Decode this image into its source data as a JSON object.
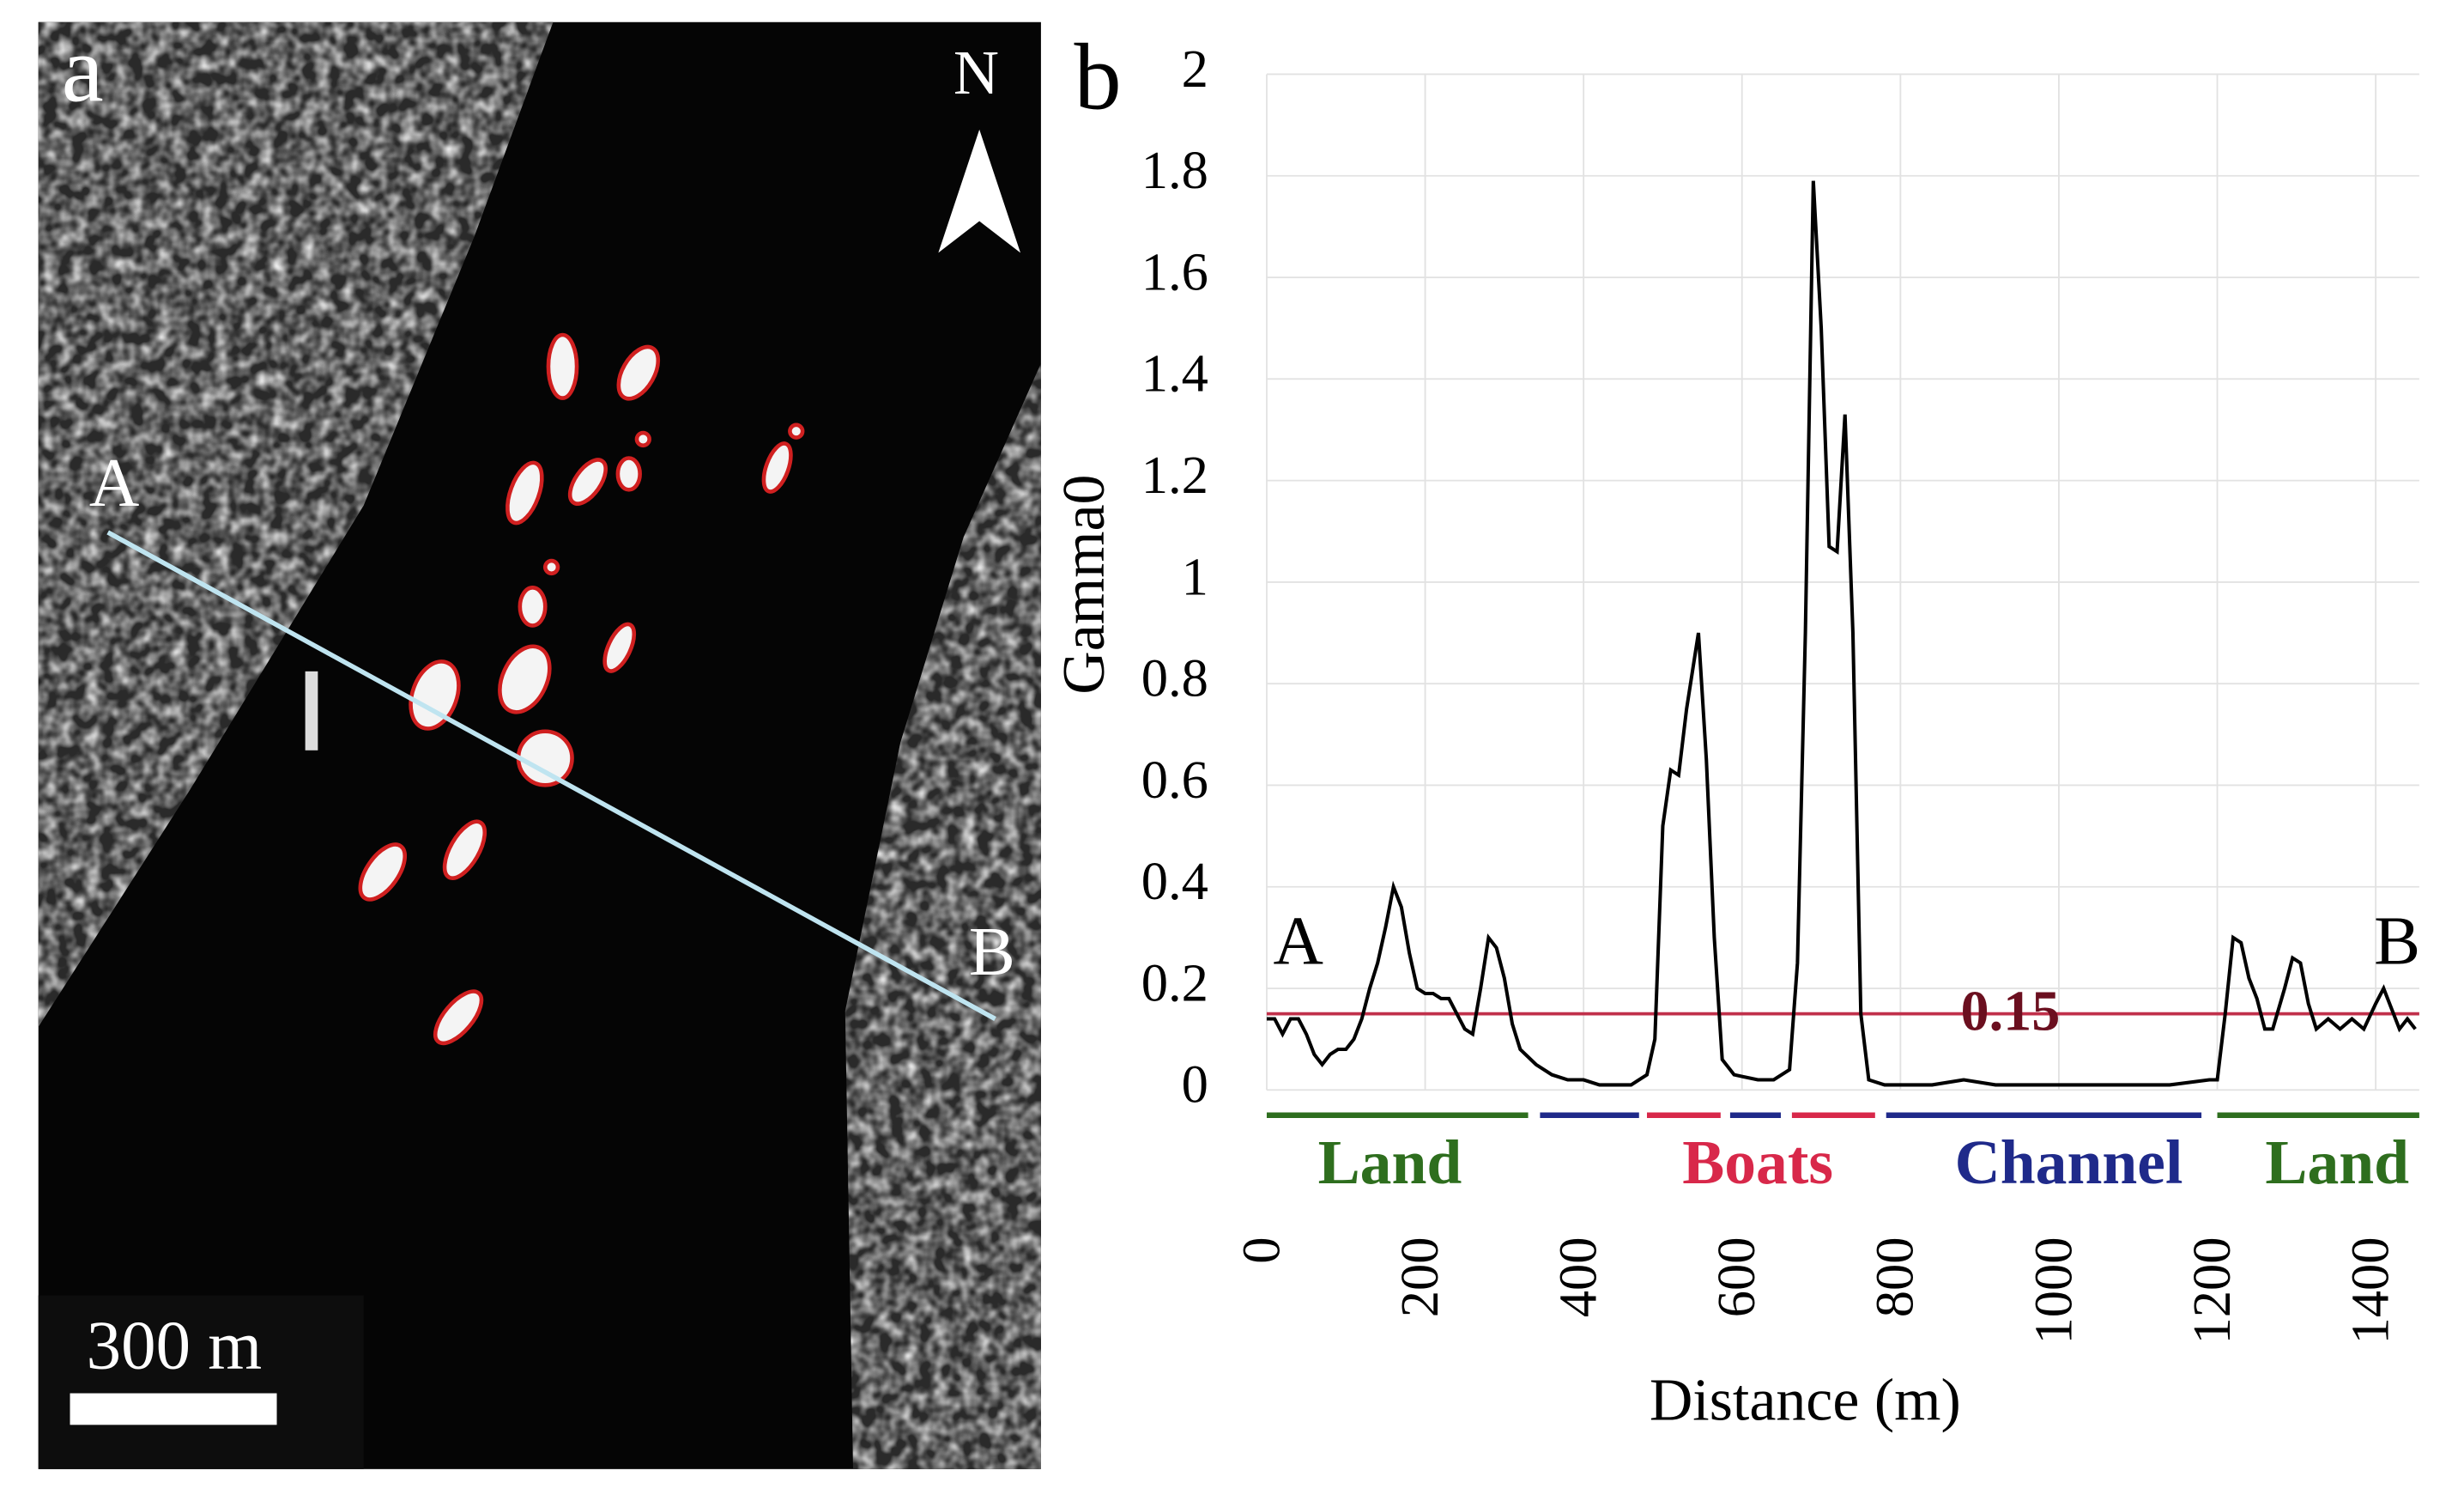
{
  "image_panel": {
    "panel_label": "a",
    "north": "N",
    "point_a": "A",
    "point_b": "B",
    "scale_bar": "300 m"
  },
  "chart_data": {
    "type": "line",
    "panel_label": "b",
    "x_label": "Distance (m)",
    "y_label": "Gamma0",
    "xlim": [
      0,
      1455
    ],
    "ylim": [
      0,
      2
    ],
    "xticks": [
      0,
      200,
      400,
      600,
      800,
      1000,
      1200,
      1400
    ],
    "yticks": [
      0,
      0.2,
      0.4,
      0.6,
      0.8,
      1,
      1.2,
      1.4,
      1.6,
      1.8,
      2
    ],
    "grid": true,
    "color": "#000000",
    "x": [
      0,
      10,
      20,
      30,
      40,
      50,
      60,
      70,
      80,
      90,
      100,
      110,
      120,
      130,
      140,
      150,
      160,
      170,
      180,
      190,
      200,
      210,
      220,
      230,
      240,
      250,
      260,
      270,
      280,
      290,
      300,
      310,
      320,
      340,
      360,
      380,
      400,
      420,
      440,
      460,
      480,
      490,
      500,
      510,
      520,
      530,
      545,
      555,
      565,
      575,
      590,
      620,
      640,
      660,
      670,
      680,
      690,
      700,
      710,
      720,
      730,
      740,
      750,
      760,
      780,
      800,
      840,
      880,
      920,
      1000,
      1080,
      1140,
      1190,
      1200,
      1210,
      1220,
      1230,
      1240,
      1250,
      1260,
      1270,
      1285,
      1295,
      1305,
      1315,
      1325,
      1340,
      1355,
      1370,
      1385,
      1400,
      1410,
      1420,
      1430,
      1440,
      1450
    ],
    "values": [
      0.14,
      0.14,
      0.11,
      0.14,
      0.14,
      0.11,
      0.07,
      0.05,
      0.07,
      0.08,
      0.08,
      0.1,
      0.14,
      0.2,
      0.25,
      0.32,
      0.4,
      0.36,
      0.27,
      0.2,
      0.19,
      0.19,
      0.18,
      0.18,
      0.15,
      0.12,
      0.11,
      0.2,
      0.3,
      0.28,
      0.22,
      0.13,
      0.08,
      0.05,
      0.03,
      0.02,
      0.02,
      0.01,
      0.01,
      0.01,
      0.03,
      0.1,
      0.52,
      0.63,
      0.62,
      0.75,
      0.9,
      0.65,
      0.3,
      0.06,
      0.03,
      0.02,
      0.02,
      0.04,
      0.25,
      0.9,
      1.79,
      1.5,
      1.07,
      1.06,
      1.33,
      0.9,
      0.15,
      0.02,
      0.01,
      0.01,
      0.01,
      0.02,
      0.01,
      0.01,
      0.01,
      0.01,
      0.02,
      0.02,
      0.15,
      0.3,
      0.29,
      0.22,
      0.18,
      0.12,
      0.12,
      0.2,
      0.26,
      0.25,
      0.17,
      0.12,
      0.14,
      0.12,
      0.14,
      0.12,
      0.17,
      0.2,
      0.16,
      0.12,
      0.14,
      0.12
    ],
    "threshold": {
      "value": 0.15,
      "color": "#c0304a",
      "label_color": "#6b0f1f"
    },
    "annotations": [
      "A",
      "B"
    ],
    "regions": [
      {
        "start": 0,
        "end": 330,
        "color": "#2e6e1e"
      },
      {
        "start": 345,
        "end": 470,
        "color": "#1f2a8a"
      },
      {
        "start": 480,
        "end": 573,
        "color": "#d8284a"
      },
      {
        "start": 585,
        "end": 649,
        "color": "#1f2a8a"
      },
      {
        "start": 663,
        "end": 768,
        "color": "#d8284a"
      },
      {
        "start": 782,
        "end": 1180,
        "color": "#1f2a8a"
      },
      {
        "start": 1200,
        "end": 1455,
        "color": "#2e6e1e"
      }
    ],
    "region_labels": [
      {
        "text": "Land",
        "color": "#2e6e1e"
      },
      {
        "text": "Boats",
        "color": "#d8284a"
      },
      {
        "text": "Channel",
        "color": "#1f2a8a"
      },
      {
        "text": "Land",
        "color": "#2e6e1e"
      }
    ]
  }
}
